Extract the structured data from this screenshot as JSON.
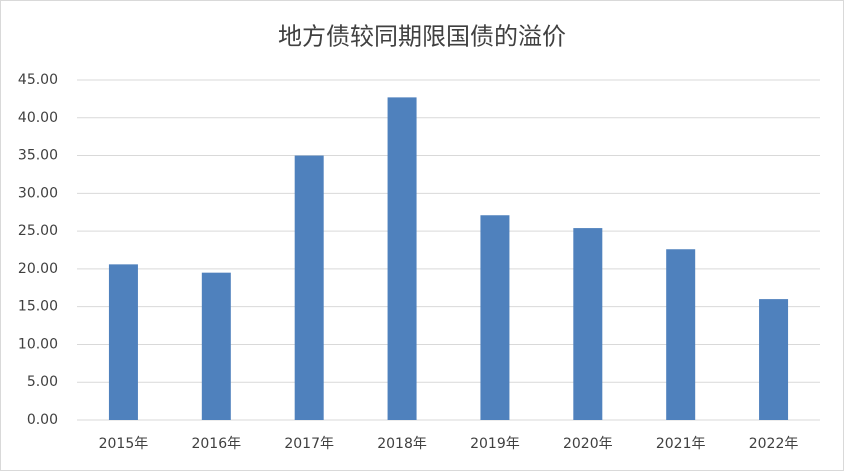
{
  "chart_data": {
    "type": "bar",
    "title": "地方债较同期限国债的溢价",
    "categories": [
      "2015年",
      "2016年",
      "2017年",
      "2018年",
      "2019年",
      "2020年",
      "2021年",
      "2022年"
    ],
    "values": [
      20.6,
      19.5,
      35.0,
      42.7,
      27.1,
      25.4,
      22.6,
      16.0
    ],
    "color": "#4f81bd",
    "ylim": [
      0,
      45
    ],
    "yticks": [
      {
        "value": 0,
        "label": "0.00"
      },
      {
        "value": 5,
        "label": "5.00"
      },
      {
        "value": 10,
        "label": "10.00"
      },
      {
        "value": 15,
        "label": "15.00"
      },
      {
        "value": 20,
        "label": "20.00"
      },
      {
        "value": 25,
        "label": "25.00"
      },
      {
        "value": 30,
        "label": "30.00"
      },
      {
        "value": 35,
        "label": "35.00"
      },
      {
        "value": 40,
        "label": "40.00"
      },
      {
        "value": 45,
        "label": "45.00"
      }
    ],
    "grid": true
  }
}
